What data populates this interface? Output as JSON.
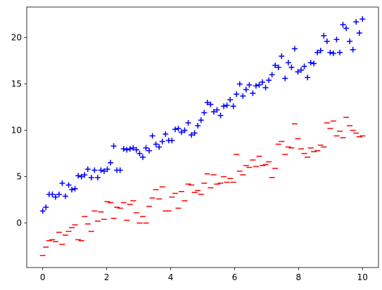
{
  "chart_data": {
    "type": "scatter",
    "x": [
      0,
      0.1,
      0.2,
      0.3,
      0.4,
      0.51,
      0.61,
      0.71,
      0.81,
      0.91,
      1.01,
      1.11,
      1.21,
      1.31,
      1.41,
      1.52,
      1.62,
      1.72,
      1.82,
      1.92,
      2.02,
      2.12,
      2.22,
      2.32,
      2.42,
      2.53,
      2.63,
      2.73,
      2.83,
      2.93,
      3.03,
      3.13,
      3.23,
      3.33,
      3.43,
      3.54,
      3.64,
      3.74,
      3.84,
      3.94,
      4.04,
      4.14,
      4.24,
      4.34,
      4.44,
      4.55,
      4.65,
      4.75,
      4.85,
      4.95,
      5.05,
      5.15,
      5.25,
      5.35,
      5.45,
      5.56,
      5.66,
      5.76,
      5.86,
      5.96,
      6.06,
      6.16,
      6.26,
      6.36,
      6.46,
      6.57,
      6.67,
      6.77,
      6.87,
      6.97,
      7.07,
      7.17,
      7.27,
      7.37,
      7.47,
      7.58,
      7.68,
      7.78,
      7.88,
      7.98,
      8.08,
      8.18,
      8.28,
      8.38,
      8.48,
      8.59,
      8.69,
      8.79,
      8.89,
      8.99,
      9.09,
      9.19,
      9.29,
      9.39,
      9.49,
      9.6,
      9.7,
      9.8,
      9.9,
      10
    ],
    "series": [
      {
        "color": "#0000ff",
        "marker": "+",
        "values": [
          1.3,
          1.7,
          3.1,
          3.1,
          2.8,
          3.1,
          4.3,
          2.9,
          4.1,
          3.6,
          3.7,
          5.1,
          5.0,
          5.2,
          5.8,
          4.9,
          5.7,
          4.9,
          5.7,
          5.6,
          5.8,
          6.5,
          8.3,
          5.7,
          5.7,
          8.0,
          7.9,
          8.0,
          8.1,
          7.9,
          7.5,
          7.1,
          8.1,
          7.8,
          9.4,
          8.5,
          8.2,
          8.8,
          9.6,
          8.9,
          8.9,
          10.1,
          10.2,
          9.8,
          10.0,
          10.8,
          9.5,
          9.7,
          10.5,
          11.1,
          11.9,
          13.0,
          12.8,
          12.0,
          12.2,
          11.6,
          12.6,
          12.7,
          13.3,
          12.6,
          13.9,
          15.0,
          13.7,
          14.4,
          14.9,
          14.0,
          14.8,
          14.9,
          15.2,
          14.6,
          15.4,
          16.0,
          17.0,
          16.8,
          18.0,
          15.6,
          17.3,
          16.8,
          18.8,
          16.3,
          16.5,
          16.9,
          15.7,
          17.3,
          17.2,
          18.4,
          18.6,
          20.2,
          19.6,
          18.4,
          18.3,
          19.8,
          18.4,
          21.4,
          21.0,
          19.6,
          18.7,
          21.7,
          20.5,
          22.0
        ]
      },
      {
        "color": "#ff0000",
        "marker": "_",
        "values": [
          -3.5,
          -2.6,
          -1.9,
          -1.8,
          -2.0,
          -1.0,
          -2.3,
          -1.3,
          -0.9,
          -0.5,
          -0.2,
          -1.8,
          -1.9,
          0.7,
          -0.1,
          -0.9,
          1.3,
          0.2,
          1.2,
          0.4,
          2.3,
          2.2,
          0.5,
          1.7,
          1.6,
          2.2,
          0.3,
          2.0,
          2.4,
          1.1,
          0.0,
          0.7,
          0.0,
          1.8,
          2.7,
          3.6,
          2.6,
          3.9,
          1.3,
          1.3,
          2.8,
          3.2,
          1.6,
          3.4,
          2.4,
          4.2,
          4.1,
          3.3,
          3.5,
          3.1,
          4.3,
          5.3,
          3.8,
          5.2,
          4.2,
          4.3,
          5.0,
          4.4,
          4.8,
          4.4,
          7.4,
          5.6,
          5.2,
          6.2,
          6.0,
          6.8,
          6.1,
          7.2,
          6.2,
          6.3,
          6.6,
          4.9,
          5.9,
          8.5,
          8.8,
          7.4,
          8.2,
          8.1,
          10.7,
          9.1,
          8.0,
          7.5,
          7.1,
          8.1,
          7.7,
          7.8,
          8.4,
          8.2,
          10.8,
          10.2,
          11.0,
          9.4,
          9.9,
          9.2,
          11.4,
          10.5,
          10.0,
          9.7,
          9.3,
          9.4
        ]
      }
    ],
    "xlim": [
      -0.5,
      10.5
    ],
    "xticks": [
      0,
      2,
      4,
      6,
      8,
      10
    ],
    "ylim": [
      -4.8,
      23.3
    ],
    "yticks": [
      0,
      5,
      10,
      15,
      20
    ],
    "grid": false
  }
}
